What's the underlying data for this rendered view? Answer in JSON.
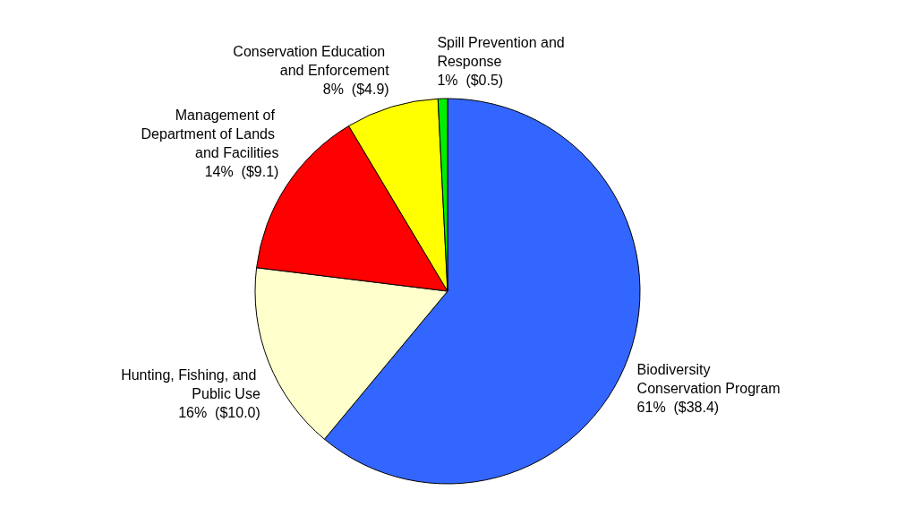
{
  "chart_data": {
    "type": "pie",
    "categories": [
      "Biodiversity Conservation Program",
      "Hunting, Fishing, and Public Use",
      "Management of Department of Lands and Facilities",
      "Conservation Education and Enforcement",
      "Spill Prevention and Response"
    ],
    "values": [
      38.4,
      10.0,
      9.1,
      4.9,
      0.5
    ],
    "colors": [
      "#3366ff",
      "#ffffcc",
      "#ff0000",
      "#ffff00",
      "#00ee00"
    ],
    "value_labels": [
      "61%  ($38.4)",
      "16%  ($10.0)",
      "14%  ($9.1)",
      "8%  ($4.9)",
      "1%  ($0.5)"
    ],
    "legend": false
  }
}
